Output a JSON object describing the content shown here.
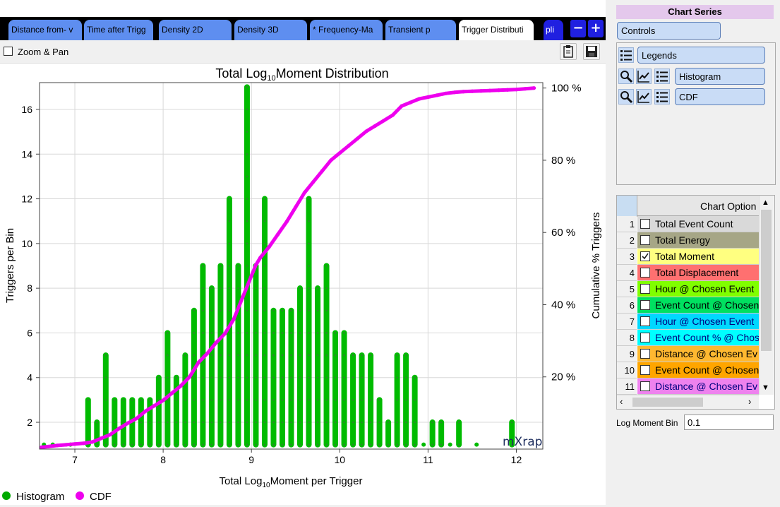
{
  "tabs": [
    {
      "label": "Distance from- v",
      "active": false
    },
    {
      "label": "Time after Trigg",
      "active": false
    },
    {
      "label": "Density 2D",
      "active": false
    },
    {
      "label": "Density 3D",
      "active": false
    },
    {
      "label": "* Frequency-Ma",
      "active": false
    },
    {
      "label": "Transient p",
      "active": false
    },
    {
      "label": "Trigger Distributi",
      "active": true
    },
    {
      "label": "pli",
      "active": false
    }
  ],
  "tab_buttons": {
    "minus": "−",
    "plus": "+"
  },
  "toolbar": {
    "zoom_pan_label": "Zoom & Pan",
    "zoom_pan_checked": false
  },
  "watermark": "mXrap",
  "legend": {
    "histogram": "Histogram",
    "cdf": "CDF"
  },
  "chart_data": {
    "type": "bar",
    "title_prefix": "Total Log",
    "title_sub": "10",
    "title_suffix": "Moment Distribution",
    "xlabel_prefix": "Total Log",
    "xlabel_sub": "10",
    "xlabel_suffix": "Moment per Trigger",
    "ylabel": "Triggers per Bin",
    "y2label": "Cumulative % Triggers",
    "xlim": [
      6.6,
      12.3
    ],
    "ylim": [
      0.8,
      17.2
    ],
    "y2lim": [
      0,
      101.5
    ],
    "xticks": [
      7,
      8,
      9,
      10,
      11,
      12
    ],
    "yticks": [
      2,
      4,
      6,
      8,
      10,
      12,
      14,
      16
    ],
    "y2ticks": [
      "20 %",
      "40 %",
      "60 %",
      "80 %",
      "100 %"
    ],
    "y2tick_values": [
      20,
      40,
      60,
      80,
      100
    ],
    "bin_width": 0.1,
    "series": [
      {
        "name": "Histogram",
        "color": "#00bb00",
        "type": "bar",
        "x": [
          6.65,
          6.75,
          6.95,
          7.15,
          7.25,
          7.35,
          7.45,
          7.55,
          7.65,
          7.75,
          7.85,
          7.95,
          8.05,
          8.15,
          8.25,
          8.35,
          8.45,
          8.55,
          8.65,
          8.75,
          8.85,
          8.95,
          9.05,
          9.15,
          9.25,
          9.35,
          9.45,
          9.55,
          9.65,
          9.75,
          9.85,
          9.95,
          10.05,
          10.15,
          10.25,
          10.35,
          10.45,
          10.55,
          10.65,
          10.75,
          10.85,
          10.95,
          11.05,
          11.15,
          11.25,
          11.35,
          11.55,
          11.95
        ],
        "values": [
          1,
          1,
          1,
          3,
          2,
          5,
          3,
          3,
          3,
          3,
          3,
          4,
          6,
          4,
          5,
          7,
          9,
          8,
          9,
          12,
          9,
          17,
          9,
          12,
          7,
          7,
          7,
          8,
          12,
          8,
          9,
          6,
          6,
          5,
          5,
          5,
          3,
          2,
          5,
          5,
          4,
          1,
          2,
          2,
          1,
          2,
          1,
          2
        ]
      },
      {
        "name": "CDF",
        "color": "#ee00ee",
        "type": "line",
        "x": [
          6.62,
          6.7,
          6.8,
          6.9,
          7.0,
          7.1,
          7.2,
          7.3,
          7.4,
          7.5,
          7.6,
          7.7,
          7.8,
          7.9,
          8.0,
          8.1,
          8.2,
          8.3,
          8.4,
          8.5,
          8.6,
          8.7,
          8.8,
          8.9,
          9.0,
          9.05,
          9.1,
          9.2,
          9.3,
          9.4,
          9.5,
          9.6,
          9.7,
          9.8,
          9.9,
          10.0,
          10.1,
          10.2,
          10.3,
          10.4,
          10.5,
          10.6,
          10.7,
          10.8,
          10.9,
          11.0,
          11.1,
          11.2,
          11.3,
          11.4,
          11.5,
          11.6,
          11.7,
          11.8,
          11.9,
          12.0,
          12.1,
          12.2
        ],
        "values": [
          0.5,
          0.7,
          1.0,
          1.2,
          1.4,
          1.6,
          2.0,
          3.0,
          4.0,
          5.7,
          7.2,
          8.5,
          10.5,
          12.0,
          13.5,
          15.5,
          17.5,
          20.0,
          24.0,
          26.5,
          29.5,
          32.0,
          36.0,
          42.0,
          48.0,
          51.0,
          53.0,
          56.0,
          59.5,
          63.0,
          67.0,
          71.0,
          74.0,
          77.0,
          80.0,
          82.0,
          84.0,
          86.0,
          88.0,
          89.5,
          91.0,
          92.5,
          95.0,
          96.0,
          97.0,
          97.5,
          98.0,
          98.5,
          98.8,
          99.0,
          99.1,
          99.2,
          99.3,
          99.4,
          99.5,
          99.6,
          99.8,
          100.0
        ]
      }
    ]
  },
  "right_panel": {
    "header": "Chart Series",
    "controls_label": "Controls",
    "series_buttons": [
      "Legends",
      "Histogram",
      "CDF"
    ],
    "options_header": "Chart Option",
    "options": [
      {
        "num": "1",
        "label": "Total Event Count",
        "color": "#d9d9d9",
        "text_color": "#000000",
        "checked": false
      },
      {
        "num": "2",
        "label": "Total Energy",
        "color": "#a6a686",
        "text_color": "#000000",
        "checked": false
      },
      {
        "num": "3",
        "label": "Total Moment",
        "color": "#ffff80",
        "text_color": "#000000",
        "checked": true
      },
      {
        "num": "4",
        "label": "Total Displacement",
        "color": "#ff7070",
        "text_color": "#000000",
        "checked": false
      },
      {
        "num": "5",
        "label": "Hour @ Chosen Event",
        "color": "#80ff00",
        "text_color": "#000000",
        "checked": false
      },
      {
        "num": "6",
        "label": "Event Count @ Chosen",
        "color": "#00e060",
        "text_color": "#000000",
        "checked": false
      },
      {
        "num": "7",
        "label": "Hour @ Chosen Event",
        "color": "#00d8ff",
        "text_color": "#000080",
        "checked": false
      },
      {
        "num": "8",
        "label": "Event Count % @ Chos",
        "color": "#00ffff",
        "text_color": "#000080",
        "checked": false
      },
      {
        "num": "9",
        "label": "Distance @ Chosen Ev",
        "color": "#ffb830",
        "text_color": "#000000",
        "checked": false
      },
      {
        "num": "10",
        "label": "Event Count @ Chosen",
        "color": "#ffa500",
        "text_color": "#000000",
        "checked": false
      },
      {
        "num": "11",
        "label": "Distance @ Chosen Ev",
        "color": "#ee82ee",
        "text_color": "#000080",
        "checked": false
      }
    ],
    "log_moment_bin_label": "Log Moment Bin",
    "log_moment_bin_value": "0.1"
  }
}
